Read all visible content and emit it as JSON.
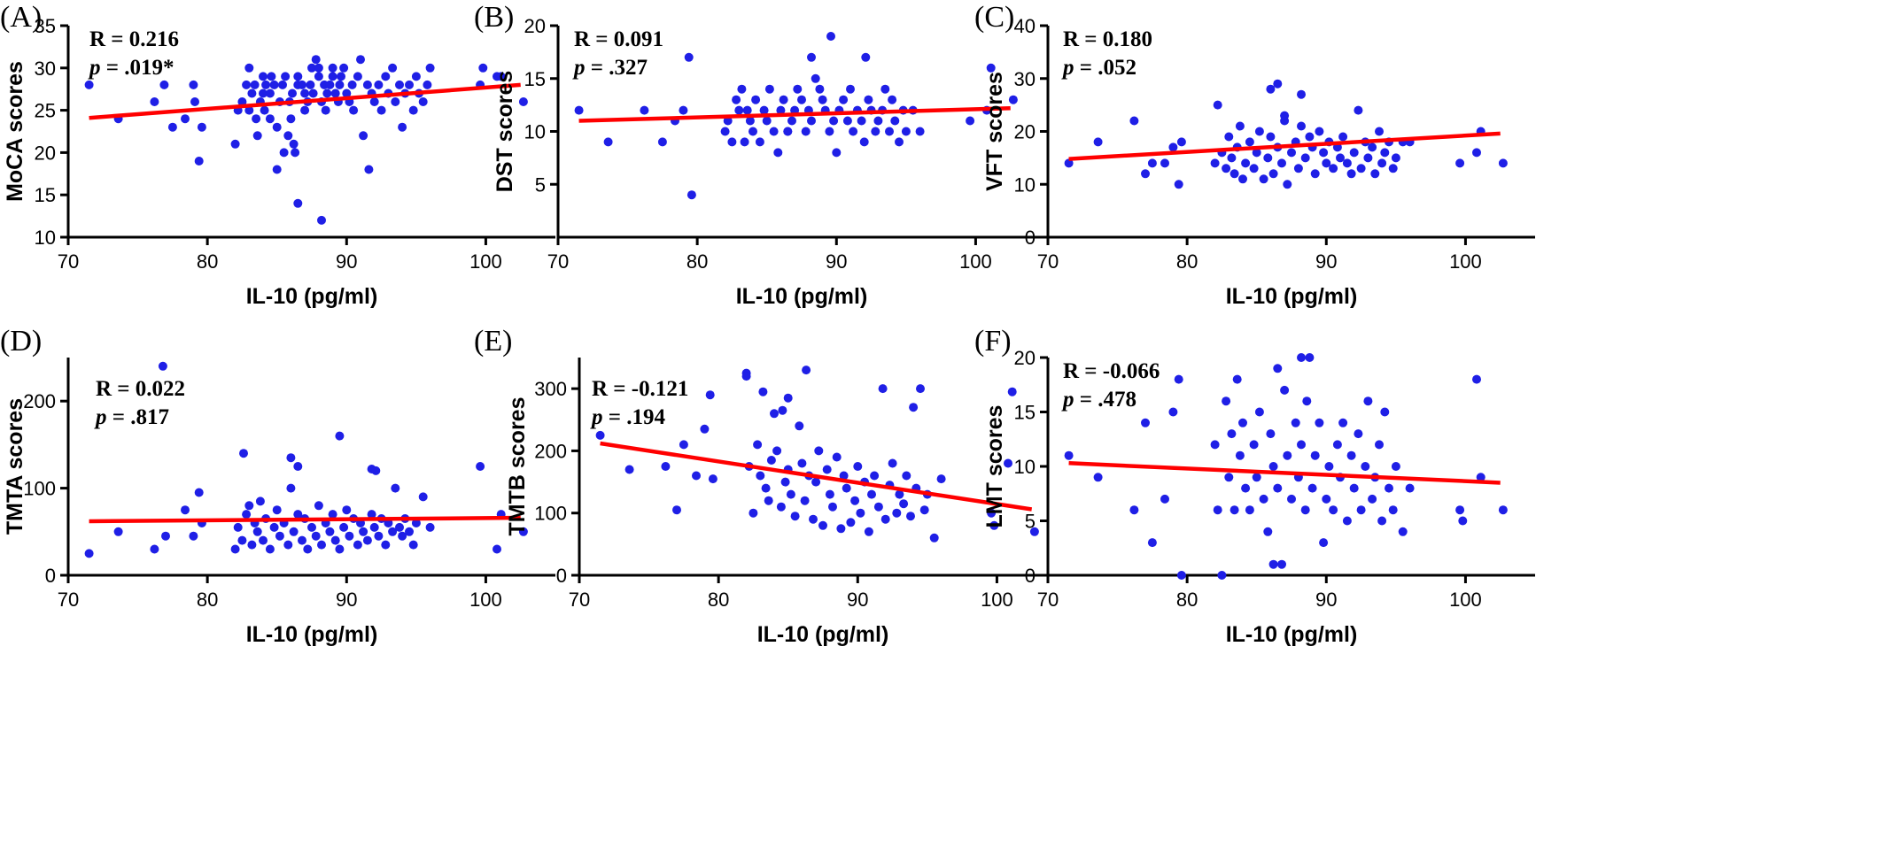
{
  "colors": {
    "point": "#1f1fe6",
    "fit_line": "#ff0000",
    "axis": "#000000"
  },
  "chart_data": [
    {
      "panel": "(A)",
      "type": "scatter",
      "xlabel": "IL-10 (pg/ml)",
      "ylabel": "MoCA scores",
      "xlim": [
        70,
        105
      ],
      "ylim": [
        10,
        35
      ],
      "xticks": [
        70,
        80,
        90,
        100
      ],
      "yticks": [
        10,
        15,
        20,
        25,
        30,
        35
      ],
      "stat_r": "R = 0.216",
      "stat_p_label": "p",
      "stat_p_value": " = .019*",
      "fit": {
        "x": [
          71.5,
          102.5
        ],
        "y": [
          24.1,
          28.0
        ]
      },
      "x": [
        71.5,
        73.6,
        76.2,
        76.9,
        77.5,
        78.4,
        79.0,
        79.1,
        79.4,
        79.6,
        82.0,
        82.2,
        82.5,
        82.8,
        83.0,
        83.0,
        83.2,
        83.4,
        83.5,
        83.6,
        83.8,
        84.0,
        84.0,
        84.1,
        84.2,
        84.5,
        84.5,
        84.6,
        84.8,
        85.0,
        85.0,
        85.2,
        85.4,
        85.5,
        85.6,
        85.8,
        85.9,
        86.0,
        86.1,
        86.2,
        86.3,
        86.5,
        86.5,
        86.8,
        87.0,
        87.0,
        87.2,
        87.4,
        87.5,
        87.6,
        87.8,
        88.0,
        88.0,
        88.2,
        88.4,
        88.5,
        88.6,
        88.8,
        89.0,
        89.0,
        89.2,
        89.4,
        89.5,
        89.6,
        89.8,
        90.0,
        90.2,
        90.4,
        90.5,
        90.8,
        91.0,
        91.2,
        91.5,
        91.8,
        92.0,
        92.3,
        92.5,
        92.8,
        93.0,
        93.3,
        93.5,
        93.8,
        94.0,
        94.2,
        94.5,
        94.8,
        95.0,
        95.2,
        95.5,
        95.8,
        96.0,
        99.6,
        99.8,
        100.8,
        101.1,
        102.7,
        86.5,
        88.2,
        91.6
      ],
      "y": [
        28,
        24,
        26,
        28,
        23,
        24,
        28,
        26,
        19,
        23,
        21,
        25,
        26,
        28,
        25,
        30,
        27,
        28,
        24,
        22,
        26,
        27,
        29,
        25,
        28,
        27,
        24,
        29,
        28,
        18,
        23,
        26,
        28,
        20,
        29,
        22,
        26,
        24,
        27,
        21,
        20,
        28,
        29,
        28,
        27,
        25,
        26,
        28,
        30,
        27,
        31,
        29,
        30,
        26,
        28,
        25,
        27,
        28,
        29,
        30,
        27,
        26,
        28,
        29,
        30,
        27,
        26,
        28,
        25,
        29,
        31,
        22,
        28,
        27,
        26,
        28,
        25,
        29,
        27,
        30,
        26,
        28,
        23,
        27,
        28,
        25,
        29,
        27,
        26,
        28,
        30,
        28,
        30,
        29,
        29,
        26,
        14,
        12,
        18
      ]
    },
    {
      "panel": "(B)",
      "type": "scatter",
      "xlabel": "IL-10 (pg/ml)",
      "ylabel": "DST scores",
      "xlim": [
        70,
        105
      ],
      "ylim": [
        0,
        20
      ],
      "xticks": [
        70,
        80,
        90,
        100
      ],
      "yticks": [
        5,
        10,
        15,
        20
      ],
      "stat_r": "R = 0.091",
      "stat_p_label": "p",
      "stat_p_value": " = .327",
      "fit": {
        "x": [
          71.5,
          102.5
        ],
        "y": [
          11.0,
          12.2
        ]
      },
      "x": [
        71.5,
        73.6,
        76.2,
        77.5,
        78.4,
        79.0,
        79.4,
        79.6,
        82.0,
        82.2,
        82.5,
        82.8,
        83.0,
        83.2,
        83.4,
        83.6,
        83.8,
        84.0,
        84.2,
        84.5,
        84.8,
        85.0,
        85.2,
        85.5,
        85.8,
        86.0,
        86.2,
        86.5,
        86.8,
        87.0,
        87.2,
        87.5,
        87.8,
        88.0,
        88.2,
        88.5,
        88.8,
        89.0,
        89.2,
        89.5,
        89.8,
        90.0,
        90.2,
        90.5,
        90.8,
        91.0,
        91.2,
        91.5,
        91.8,
        92.0,
        92.3,
        92.5,
        92.8,
        93.0,
        93.3,
        93.5,
        93.8,
        94.0,
        94.2,
        94.5,
        94.8,
        95.0,
        95.5,
        96.0,
        99.6,
        100.8,
        101.1,
        102.7,
        86.5,
        88.2,
        89.6,
        92.1
      ],
      "y": [
        12,
        9,
        12,
        9,
        11,
        12,
        17,
        4,
        10,
        11,
        9,
        13,
        12,
        14,
        9,
        12,
        11,
        10,
        13,
        9,
        12,
        11,
        14,
        10,
        8,
        12,
        13,
        10,
        11,
        12,
        14,
        13,
        10,
        12,
        11,
        15,
        14,
        13,
        12,
        10,
        11,
        8,
        12,
        13,
        11,
        14,
        10,
        12,
        11,
        9,
        13,
        12,
        10,
        11,
        12,
        14,
        10,
        13,
        11,
        9,
        12,
        10,
        12,
        10,
        11,
        12,
        16,
        13,
        10,
        17,
        19,
        17
      ]
    },
    {
      "panel": "(C)",
      "type": "scatter",
      "xlabel": "IL-10 (pg/ml)",
      "ylabel": "VFT scores",
      "xlim": [
        70,
        105
      ],
      "ylim": [
        0,
        40
      ],
      "xticks": [
        70,
        80,
        90,
        100
      ],
      "yticks": [
        0,
        10,
        20,
        30,
        40
      ],
      "stat_r": "R = 0.180",
      "stat_p_label": "p",
      "stat_p_value": " = .052",
      "fit": {
        "x": [
          71.5,
          102.5
        ],
        "y": [
          14.8,
          19.6
        ]
      },
      "x": [
        71.5,
        73.6,
        76.2,
        77.0,
        77.5,
        78.4,
        79.0,
        79.4,
        79.6,
        82.0,
        82.2,
        82.5,
        82.8,
        83.0,
        83.2,
        83.4,
        83.6,
        83.8,
        84.0,
        84.2,
        84.5,
        84.8,
        85.0,
        85.2,
        85.5,
        85.8,
        86.0,
        86.2,
        86.5,
        86.8,
        87.0,
        87.2,
        87.5,
        87.8,
        88.0,
        88.2,
        88.5,
        88.8,
        89.0,
        89.2,
        89.5,
        89.8,
        90.0,
        90.2,
        90.5,
        90.8,
        91.0,
        91.2,
        91.5,
        91.8,
        92.0,
        92.3,
        92.5,
        92.8,
        93.0,
        93.3,
        93.5,
        93.8,
        94.0,
        94.2,
        94.5,
        94.8,
        95.0,
        95.5,
        96.0,
        99.6,
        100.8,
        101.1,
        102.7,
        86.0,
        86.5,
        87.0,
        88.2
      ],
      "y": [
        14,
        18,
        22,
        12,
        14,
        14,
        17,
        10,
        18,
        14,
        25,
        16,
        13,
        19,
        15,
        12,
        17,
        21,
        11,
        14,
        18,
        13,
        16,
        20,
        11,
        15,
        19,
        12,
        17,
        14,
        22,
        10,
        16,
        18,
        13,
        21,
        15,
        19,
        17,
        12,
        20,
        16,
        14,
        18,
        13,
        17,
        15,
        19,
        14,
        12,
        16,
        24,
        13,
        18,
        15,
        17,
        12,
        20,
        14,
        16,
        18,
        13,
        15,
        18,
        18,
        14,
        16,
        20,
        14,
        28,
        29,
        23,
        27
      ]
    },
    {
      "panel": "(D)",
      "type": "scatter",
      "xlabel": "IL-10 (pg/ml)",
      "ylabel": "TMTA scores",
      "xlim": [
        70,
        105
      ],
      "ylim": [
        0,
        250
      ],
      "xticks": [
        70,
        80,
        90,
        100
      ],
      "yticks": [
        0,
        100,
        200
      ],
      "stat_r": "R = 0.022",
      "stat_p_label": "p",
      "stat_p_value": " = .817",
      "fit": {
        "x": [
          71.5,
          102.5
        ],
        "y": [
          62,
          66
        ]
      },
      "x": [
        71.5,
        73.6,
        76.2,
        77.0,
        78.4,
        79.0,
        79.4,
        79.6,
        82.0,
        82.2,
        82.5,
        82.8,
        83.0,
        83.2,
        83.4,
        83.6,
        83.8,
        84.0,
        84.2,
        84.5,
        84.8,
        85.0,
        85.2,
        85.5,
        85.8,
        86.0,
        86.2,
        86.5,
        86.8,
        87.0,
        87.2,
        87.5,
        87.8,
        88.0,
        88.2,
        88.5,
        88.8,
        89.0,
        89.2,
        89.5,
        89.8,
        90.0,
        90.2,
        90.5,
        90.8,
        91.0,
        91.2,
        91.5,
        91.8,
        92.0,
        92.3,
        92.5,
        92.8,
        93.0,
        93.3,
        93.5,
        93.8,
        94.0,
        94.2,
        94.5,
        94.8,
        95.0,
        95.5,
        96.0,
        99.6,
        100.8,
        101.1,
        102.7,
        76.8,
        82.6,
        86.0,
        86.5,
        89.5,
        91.8,
        92.1
      ],
      "y": [
        25,
        50,
        30,
        45,
        75,
        45,
        95,
        60,
        30,
        55,
        40,
        70,
        80,
        35,
        60,
        50,
        85,
        40,
        65,
        30,
        55,
        75,
        45,
        60,
        35,
        100,
        50,
        70,
        40,
        65,
        30,
        55,
        45,
        80,
        35,
        60,
        50,
        70,
        40,
        30,
        55,
        75,
        45,
        65,
        35,
        60,
        50,
        40,
        70,
        55,
        45,
        65,
        35,
        60,
        50,
        100,
        55,
        45,
        65,
        50,
        35,
        60,
        90,
        55,
        125,
        30,
        70,
        50,
        240,
        140,
        135,
        125,
        160,
        122,
        120
      ]
    },
    {
      "panel": "(E)",
      "type": "scatter",
      "xlabel": "IL-10 (pg/ml)",
      "ylabel": "TMTB scores",
      "xlim": [
        70,
        105
      ],
      "ylim": [
        0,
        350
      ],
      "xticks": [
        70,
        80,
        90,
        100
      ],
      "yticks": [
        0,
        100,
        200,
        300
      ],
      "stat_r": "R = -0.121",
      "stat_p_label": "p",
      "stat_p_value": " = .194",
      "fit": {
        "x": [
          71.5,
          102.5
        ],
        "y": [
          212,
          106
        ]
      },
      "x": [
        71.5,
        73.6,
        76.2,
        77.0,
        77.5,
        78.4,
        79.0,
        79.4,
        79.6,
        82.0,
        82.0,
        82.2,
        82.5,
        82.8,
        83.0,
        83.2,
        83.4,
        83.6,
        83.8,
        84.0,
        84.2,
        84.5,
        84.8,
        85.0,
        85.2,
        85.5,
        85.8,
        86.0,
        86.2,
        86.5,
        86.8,
        87.0,
        87.2,
        87.5,
        87.8,
        88.0,
        88.2,
        88.5,
        88.8,
        89.0,
        89.2,
        89.5,
        89.8,
        90.0,
        90.2,
        90.5,
        90.8,
        91.0,
        91.2,
        91.5,
        91.8,
        92.0,
        92.3,
        92.5,
        92.8,
        93.0,
        93.3,
        93.5,
        93.8,
        94.0,
        94.2,
        94.5,
        94.8,
        95.0,
        95.5,
        96.0,
        99.6,
        99.8,
        100.8,
        101.1,
        102.7,
        84.6,
        85.0,
        86.3
      ],
      "y": [
        225,
        170,
        175,
        105,
        210,
        160,
        235,
        290,
        155,
        325,
        320,
        175,
        100,
        210,
        160,
        295,
        140,
        120,
        185,
        260,
        200,
        110,
        150,
        170,
        130,
        95,
        240,
        180,
        120,
        160,
        90,
        150,
        200,
        80,
        170,
        130,
        110,
        190,
        75,
        160,
        140,
        85,
        120,
        175,
        100,
        150,
        70,
        130,
        160,
        110,
        300,
        90,
        145,
        180,
        100,
        130,
        115,
        160,
        95,
        270,
        140,
        300,
        105,
        130,
        60,
        155,
        100,
        80,
        180,
        295,
        70,
        265,
        285,
        330
      ]
    },
    {
      "panel": "(F)",
      "type": "scatter",
      "xlabel": "IL-10 (pg/ml)",
      "ylabel": "LMT scores",
      "xlim": [
        70,
        105
      ],
      "ylim": [
        0,
        20
      ],
      "xticks": [
        70,
        80,
        90,
        100
      ],
      "yticks": [
        0,
        5,
        10,
        15,
        20
      ],
      "stat_r": "R = -0.066",
      "stat_p_label": "p",
      "stat_p_value": " = .478",
      "fit": {
        "x": [
          71.5,
          102.5
        ],
        "y": [
          10.3,
          8.5
        ]
      },
      "x": [
        71.5,
        73.6,
        76.2,
        77.0,
        77.5,
        78.4,
        79.0,
        79.4,
        79.6,
        82.0,
        82.2,
        82.5,
        82.8,
        83.0,
        83.2,
        83.4,
        83.6,
        83.8,
        84.0,
        84.2,
        84.5,
        84.8,
        85.0,
        85.2,
        85.5,
        85.8,
        86.0,
        86.2,
        86.5,
        86.8,
        87.0,
        87.2,
        87.5,
        87.8,
        88.0,
        88.2,
        88.5,
        88.8,
        89.0,
        89.2,
        89.5,
        89.8,
        90.0,
        90.2,
        90.5,
        90.8,
        91.0,
        91.2,
        91.5,
        91.8,
        92.0,
        92.3,
        92.5,
        92.8,
        93.0,
        93.3,
        93.5,
        93.8,
        94.0,
        94.2,
        94.5,
        94.8,
        95.0,
        95.5,
        96.0,
        99.6,
        99.8,
        100.8,
        101.1,
        102.7,
        88.2,
        88.6,
        86.5,
        86.2
      ],
      "y": [
        11,
        9,
        6,
        14,
        3,
        7,
        15,
        18,
        0,
        12,
        6,
        0,
        16,
        9,
        13,
        6,
        18,
        11,
        14,
        8,
        6,
        12,
        9,
        15,
        7,
        4,
        13,
        10,
        8,
        1,
        17,
        11,
        7,
        14,
        9,
        12,
        6,
        20,
        8,
        11,
        14,
        3,
        7,
        10,
        6,
        12,
        9,
        14,
        5,
        11,
        8,
        13,
        6,
        10,
        16,
        7,
        9,
        12,
        5,
        15,
        8,
        6,
        10,
        4,
        8,
        6,
        5,
        18,
        9,
        6,
        20,
        16,
        19,
        1
      ]
    }
  ]
}
